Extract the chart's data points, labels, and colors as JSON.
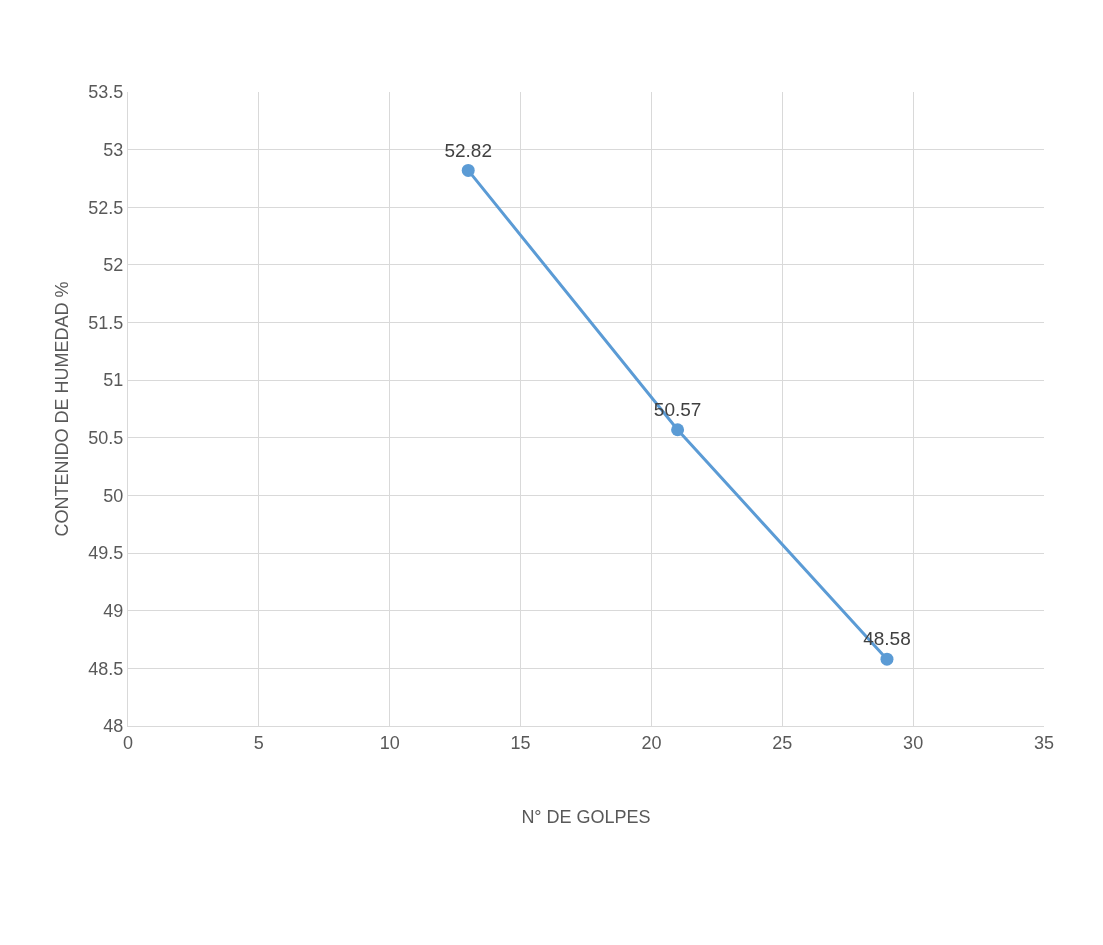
{
  "chart_data": {
    "type": "line",
    "xlabel": "N° DE GOLPES",
    "ylabel": "CONTENIDO DE HUMEDAD %",
    "x": [
      13,
      21,
      29
    ],
    "series": [
      {
        "color": "#5b9bd5",
        "values": [
          52.82,
          50.57,
          48.58
        ]
      }
    ],
    "xlim": [
      0,
      35
    ],
    "xticks": [
      0,
      5,
      10,
      15,
      20,
      25,
      30,
      35
    ],
    "ylim": [
      48,
      53.5
    ],
    "yticks": [
      48,
      48.5,
      49,
      49.5,
      50,
      50.5,
      51,
      51.5,
      52,
      52.5,
      53,
      53.5
    ],
    "grid": true,
    "marker": "circle",
    "line_style": "solid",
    "data_labels": true
  }
}
